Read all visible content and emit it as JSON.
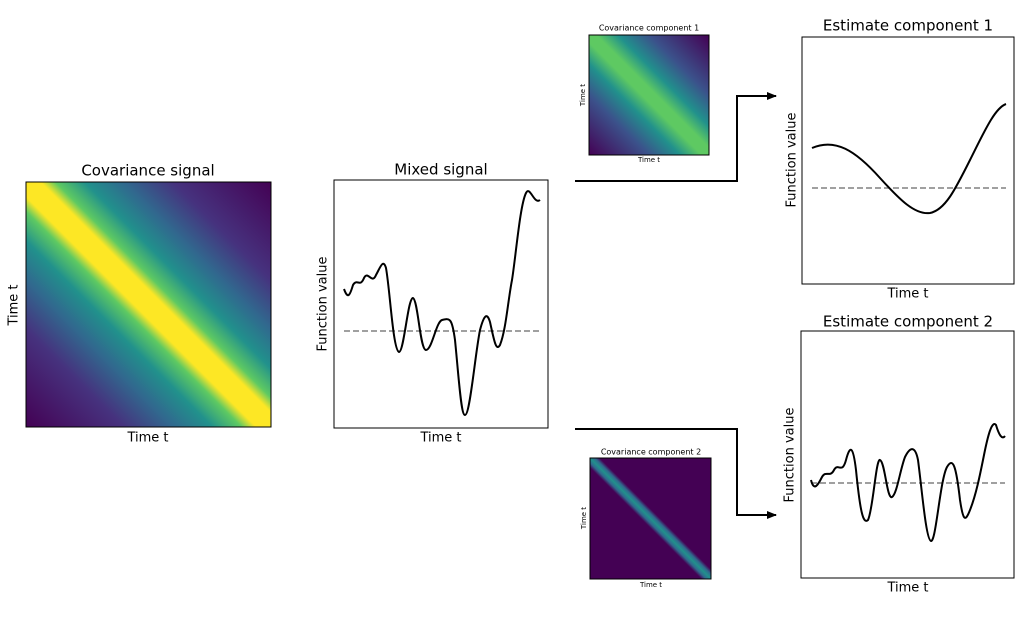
{
  "covariance_signal": {
    "title": "Covariance signal",
    "x_label": "Time t",
    "y_label": "Time t"
  },
  "mixed_signal": {
    "title": "Mixed signal",
    "x_label": "Time t",
    "y_label": "Function value"
  },
  "covariance_component_1": {
    "title": "Covariance component 1",
    "x_label": "Time t",
    "y_label": "Time t"
  },
  "covariance_component_2": {
    "title": "Covariance component 2",
    "x_label": "Time t",
    "y_label": "Time t"
  },
  "estimate_component_1": {
    "title": "Estimate component 1",
    "x_label": "Time t",
    "y_label": "Function value"
  },
  "estimate_component_2": {
    "title": "Estimate component 2",
    "x_label": "Time t",
    "y_label": "Function value"
  }
}
